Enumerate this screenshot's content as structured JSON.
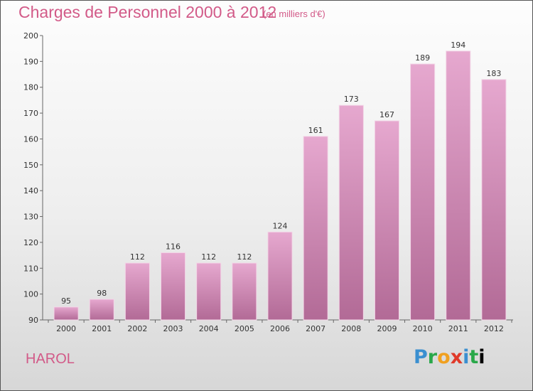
{
  "header": {
    "title": "Charges de Personnel 2000 à 2012",
    "subtitle": "(en milliers d'€)"
  },
  "footer": {
    "commune": "HAROL",
    "logo_letters": [
      "P",
      "r",
      "o",
      "x",
      "i",
      "t",
      "i"
    ]
  },
  "colors": {
    "title": "#d25a88",
    "bar_top": "#e6a8cf",
    "bar_bottom": "#b26a96"
  },
  "chart_data": {
    "type": "bar",
    "categories": [
      "2000",
      "2001",
      "2002",
      "2003",
      "2004",
      "2005",
      "2006",
      "2007",
      "2008",
      "2009",
      "2010",
      "2011",
      "2012"
    ],
    "values": [
      95,
      98,
      112,
      116,
      112,
      112,
      124,
      161,
      173,
      167,
      189,
      194,
      183
    ],
    "title": "Charges de Personnel 2000 à 2012",
    "ylim": [
      90,
      200
    ],
    "yticks": [
      90,
      100,
      110,
      120,
      130,
      140,
      150,
      160,
      170,
      180,
      190,
      200
    ],
    "grid": false,
    "legend": "none"
  }
}
